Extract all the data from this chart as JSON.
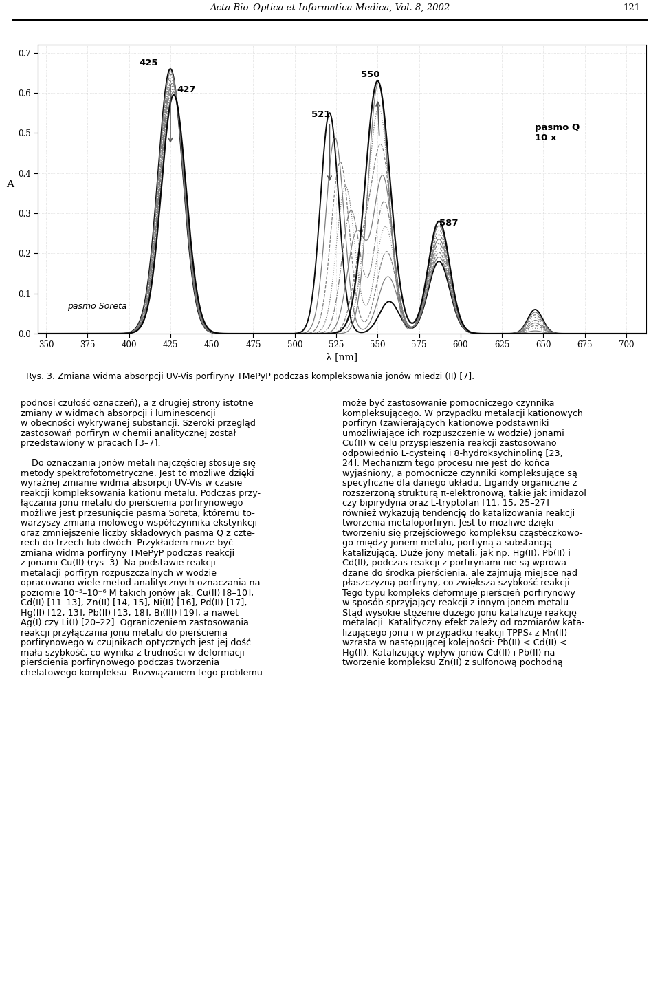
{
  "header_text": "Acta Bio–Optica et Informatica Medica, Vol. 8, 2002",
  "header_page": "121",
  "fig_caption": "Rys. 3. Zmiana widma absorpcji UV-Vis porfiryny TMePyP podczas kompleksowania jonów miedzi (II) [7].",
  "ylabel": "A",
  "xlabel": "λ [nm]",
  "xlim": [
    345,
    712
  ],
  "ylim": [
    0.0,
    0.72
  ],
  "yticks": [
    0.0,
    0.1,
    0.2,
    0.3,
    0.4,
    0.5,
    0.6,
    0.7
  ],
  "xticks": [
    350,
    375,
    400,
    425,
    450,
    475,
    500,
    525,
    550,
    575,
    600,
    625,
    650,
    675,
    700
  ],
  "background_color": "#ffffff",
  "grid_color": "#d0d0d0",
  "text_fontsize": 9.2,
  "axis_fontsize": 8.5,
  "left_col_text": [
    "podnosi czułość oznaczeń), a z drugiej strony istotne",
    "zmiany w widmach absorpcji i luminescencji",
    "w obecności wykrywanej substancji. Szeroki przegląd",
    "zastosowań porfiryn w chemii analitycznej został",
    "przedstawiony w pracach [3–7].",
    "",
    "    Do oznaczania jonów metali najczęściej stosuje się",
    "metody spektrofotometryczne. Jest to możliwe dzięki",
    "wyraźnej zmianie widma absorpcji UV-Vis w czasie",
    "reakcji kompleksowania kationu metalu. Podczas przy-",
    "łączania jonu metalu do pierścienia porfirynowego",
    "możliwe jest przesunięcie pasma Soreta, któremu to-",
    "warzyszy zmiana molowego współczynnika ekstynkcji",
    "oraz zmniejszenie liczby składowych pasma Q z czte-",
    "rech do trzech lub dwóch. Przykładem może być",
    "zmiana widma porfiryny TMePyP podczas reakcji",
    "z jonami Cu(II) (rys. 3). Na podstawie reakcji",
    "metalacji porfiryn rozpuszczalnych w wodzie",
    "opracowano wiele metod analitycznych oznaczania na",
    "poziomie 10⁻⁵–10⁻⁶ M takich jonów jak: Cu(II) [8–10],",
    "Cd(II) [11–13], Zn(II) [14, 15], Ni(II) [16], Pd(II) [17],",
    "Hg(II) [12, 13], Pb(II) [13, 18], Bi(III) [19], a nawet",
    "Ag(I) czy Li(I) [20–22]. Ograniczeniem zastosowania",
    "reakcji przyłączania jonu metalu do pierścienia",
    "porfirynowego w czujnikach optycznych jest jej dość",
    "mała szybkość, co wynika z trudności w deformacji",
    "pierścienia porfirynowego podczas tworzenia",
    "chelatowego kompleksu. Rozwiązaniem tego problemu"
  ],
  "right_col_text": [
    "może być zastosowanie pomocniczego czynnika",
    "kompleksującego. W przypadku metalacji kationowych",
    "porfiryn (zawierających kationowe podstawniki",
    "umożliwiające ich rozpuszczenie w wodzie) jonami",
    "Cu(II) w celu przyspieszenia reakcji zastosowano",
    "odpowiednio L-cysteinę i 8-hydroksychinolinę [23,",
    "24]. Mechanizm tego procesu nie jest do końca",
    "wyjaśniony, a pomocnicze czynniki kompleksujące są",
    "specyficzne dla danego układu. Ligandy organiczne z",
    "rozszerzoną strukturą π-elektronową, takie jak imidazol",
    "czy bipirydyna oraz L-tryptofan [11, 15, 25–27]",
    "również wykazują tendencję do katalizowania reakcji",
    "tworzenia metaloporfiryn. Jest to możliwe dzięki",
    "tworzeniu się przejściowego kompleksu cząsteczkowo-",
    "go między jonem metalu, porfiyną a substancją",
    "katalizującą. Duże jony metali, jak np. Hg(II), Pb(II) i",
    "Cd(II), podczas reakcji z porfirynami nie są wprowa-",
    "dzane do środka pierścienia, ale zajmują miejsce nad",
    "płaszczyzną porfiryny, co zwiększa szybkość reakcji.",
    "Tego typu kompleks deformuje pierścień porfirynowy",
    "w sposób sprzyjający reakcji z innym jonem metalu.",
    "Stąd wysokie stężenie dużego jonu katalizuje reakcję",
    "metalacji. Katalityczny efekt zależy od rozmiarów kata-",
    "lizującego jonu i w przypadku reakcji TPPS₄ z Mn(II)",
    "wzrasta w następującej kolejności: Pb(II) < Cd(II) <",
    "Hg(II). Katalizujący wpływ jonów Cd(II) i Pb(II) na",
    "tworzenie kompleksu Zn(II) z sulfonową pochodną"
  ]
}
